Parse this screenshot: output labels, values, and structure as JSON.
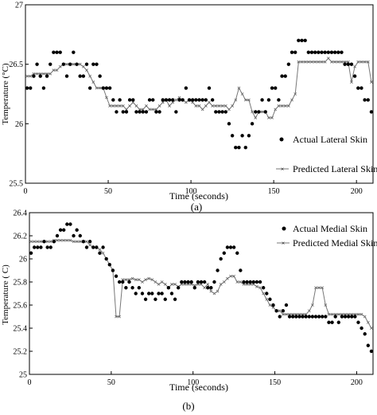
{
  "chart_data": [
    {
      "type": "scatter",
      "panel_label": "(a)",
      "xlabel": "Time (seconds)",
      "ylabel": "Temperature (°C)",
      "xlim": [
        0,
        210
      ],
      "ylim": [
        25.5,
        27
      ],
      "xticks": [
        "0",
        "50",
        "100",
        "150",
        "200"
      ],
      "yticks": [
        "25.5",
        "26",
        "26.5",
        "27"
      ],
      "grid": false,
      "legend_position": "bottom-right",
      "series": [
        {
          "name": "Actual Lateral Skin",
          "style": "dots",
          "x": [
            1,
            3,
            5,
            7,
            9,
            11,
            13,
            15,
            17,
            19,
            21,
            23,
            25,
            27,
            29,
            31,
            33,
            35,
            37,
            39,
            41,
            43,
            45,
            47,
            49,
            51,
            53,
            55,
            57,
            59,
            61,
            63,
            65,
            67,
            69,
            71,
            73,
            75,
            77,
            79,
            81,
            83,
            85,
            87,
            89,
            91,
            93,
            95,
            97,
            99,
            101,
            103,
            105,
            107,
            109,
            111,
            113,
            115,
            117,
            119,
            121,
            123,
            125,
            127,
            129,
            131,
            133,
            135,
            137,
            139,
            141,
            143,
            145,
            147,
            149,
            151,
            153,
            155,
            157,
            159,
            161,
            163,
            165,
            167,
            169,
            171,
            173,
            175,
            177,
            179,
            181,
            183,
            185,
            187,
            189,
            191,
            193,
            195,
            197,
            199,
            201,
            203,
            205,
            207,
            209
          ],
          "y": [
            26.3,
            26.3,
            26.4,
            26.5,
            26.4,
            26.3,
            26.4,
            26.5,
            26.6,
            26.6,
            26.6,
            26.5,
            26.4,
            26.5,
            26.6,
            26.5,
            26.4,
            26.4,
            26.5,
            26.3,
            26.5,
            26.5,
            26.4,
            26.3,
            26.3,
            26.3,
            26.2,
            26.1,
            26.2,
            26.1,
            26.1,
            26.2,
            26.2,
            26.1,
            26.1,
            26.1,
            26.1,
            26.2,
            26.2,
            26.1,
            26.1,
            26.2,
            26.2,
            26.2,
            26.2,
            26.1,
            26.2,
            26.2,
            26.3,
            26.2,
            26.2,
            26.2,
            26.2,
            26.2,
            26.2,
            26.3,
            26.2,
            26.1,
            26.1,
            26.1,
            26.1,
            26.0,
            25.9,
            25.8,
            25.8,
            25.9,
            25.8,
            25.9,
            26.0,
            26.1,
            26.1,
            26.2,
            26.1,
            26.2,
            26.3,
            26.3,
            26.2,
            26.4,
            26.4,
            26.5,
            26.6,
            26.6,
            26.7,
            26.7,
            26.7,
            26.6,
            26.6,
            26.6,
            26.6,
            26.6,
            26.6,
            26.6,
            26.6,
            26.6,
            26.6,
            26.6,
            26.5,
            26.5,
            26.5,
            26.4,
            26.3,
            26.3,
            26.2,
            26.2,
            26.1
          ]
        },
        {
          "name": "Predicted Lateral Skin",
          "style": "line-x",
          "x": [
            1,
            3,
            5,
            7,
            9,
            11,
            13,
            15,
            17,
            19,
            21,
            23,
            25,
            27,
            29,
            31,
            33,
            35,
            37,
            39,
            41,
            43,
            45,
            47,
            49,
            51,
            53,
            55,
            57,
            59,
            61,
            63,
            65,
            67,
            69,
            71,
            73,
            75,
            77,
            79,
            81,
            83,
            85,
            87,
            89,
            91,
            93,
            95,
            97,
            99,
            101,
            103,
            105,
            107,
            109,
            111,
            113,
            115,
            117,
            119,
            121,
            123,
            125,
            127,
            129,
            131,
            133,
            135,
            137,
            139,
            141,
            143,
            145,
            147,
            149,
            151,
            153,
            155,
            157,
            159,
            161,
            163,
            165,
            167,
            169,
            171,
            173,
            175,
            177,
            179,
            181,
            183,
            185,
            187,
            189,
            191,
            193,
            195,
            197,
            199,
            201,
            203,
            205,
            207,
            209
          ],
          "y": [
            26.4,
            26.4,
            26.42,
            26.42,
            26.42,
            26.42,
            26.42,
            26.42,
            26.45,
            26.45,
            26.48,
            26.5,
            26.5,
            26.5,
            26.5,
            26.5,
            26.5,
            26.48,
            26.45,
            26.4,
            26.35,
            26.3,
            26.3,
            26.3,
            26.22,
            26.15,
            26.15,
            26.15,
            26.15,
            26.15,
            26.12,
            26.15,
            26.18,
            26.15,
            26.12,
            26.12,
            26.15,
            26.12,
            26.12,
            26.12,
            26.15,
            26.18,
            26.2,
            26.15,
            26.18,
            26.2,
            26.22,
            26.2,
            26.18,
            26.2,
            26.18,
            26.15,
            26.15,
            26.12,
            26.15,
            26.18,
            26.15,
            26.15,
            26.15,
            26.15,
            26.15,
            26.12,
            26.15,
            26.2,
            26.3,
            26.25,
            26.2,
            26.2,
            26.1,
            26.05,
            26.1,
            26.1,
            26.1,
            26.05,
            26.05,
            26.12,
            26.15,
            26.15,
            26.15,
            26.15,
            26.2,
            26.25,
            26.52,
            26.52,
            26.52,
            26.52,
            26.52,
            26.52,
            26.52,
            26.52,
            26.52,
            26.55,
            26.52,
            26.52,
            26.52,
            26.52,
            26.52,
            26.52,
            26.35,
            26.48,
            26.52,
            26.52,
            26.52,
            26.52,
            26.35
          ]
        }
      ]
    },
    {
      "type": "scatter",
      "panel_label": "(b)",
      "xlabel": "Time (seconds)",
      "ylabel": "Temperature ( C)",
      "xlim": [
        0,
        210
      ],
      "ylim": [
        25,
        26.4
      ],
      "xticks": [
        "0",
        "50",
        "100",
        "150",
        "200"
      ],
      "yticks": [
        "25",
        "25.2",
        "25.4",
        "25.6",
        "25.8",
        "26",
        "26.2",
        "26.4"
      ],
      "grid": false,
      "legend_position": "top-right",
      "series": [
        {
          "name": "Actual Medial Skin",
          "style": "dots",
          "x": [
            1,
            3,
            5,
            7,
            9,
            11,
            13,
            15,
            17,
            19,
            21,
            23,
            25,
            27,
            29,
            31,
            33,
            35,
            37,
            39,
            41,
            43,
            45,
            47,
            49,
            51,
            53,
            55,
            57,
            59,
            61,
            63,
            65,
            67,
            69,
            71,
            73,
            75,
            77,
            79,
            81,
            83,
            85,
            87,
            89,
            91,
            93,
            95,
            97,
            99,
            101,
            103,
            105,
            107,
            109,
            111,
            113,
            115,
            117,
            119,
            121,
            123,
            125,
            127,
            129,
            131,
            133,
            135,
            137,
            139,
            141,
            143,
            145,
            147,
            149,
            151,
            153,
            155,
            157,
            159,
            161,
            163,
            165,
            167,
            169,
            171,
            173,
            175,
            177,
            179,
            181,
            183,
            185,
            187,
            189,
            191,
            193,
            195,
            197,
            199,
            201,
            203,
            205,
            207,
            209
          ],
          "y": [
            26.05,
            26.1,
            26.1,
            26.1,
            26.15,
            26.1,
            26.1,
            26.15,
            26.2,
            26.25,
            26.25,
            26.3,
            26.3,
            26.2,
            26.25,
            26.2,
            26.15,
            26.1,
            26.15,
            26.1,
            26.1,
            26.05,
            26.1,
            26.0,
            25.95,
            25.9,
            25.85,
            25.8,
            25.8,
            25.75,
            25.8,
            25.75,
            25.7,
            25.75,
            25.7,
            25.65,
            25.7,
            25.7,
            25.65,
            25.7,
            25.7,
            25.65,
            25.75,
            25.7,
            25.65,
            25.75,
            25.8,
            25.8,
            25.8,
            25.8,
            25.75,
            25.8,
            25.8,
            25.8,
            25.75,
            25.75,
            25.8,
            25.9,
            26.0,
            26.05,
            26.1,
            26.1,
            26.1,
            26.05,
            25.9,
            25.8,
            25.8,
            25.8,
            25.8,
            25.8,
            25.8,
            25.75,
            25.7,
            25.65,
            25.6,
            25.55,
            25.5,
            25.55,
            25.6,
            25.5,
            25.5,
            25.5,
            25.5,
            25.5,
            25.5,
            25.5,
            25.5,
            25.5,
            25.5,
            25.5,
            25.5,
            25.45,
            25.45,
            25.5,
            25.45,
            25.5,
            25.5,
            25.5,
            25.5,
            25.5,
            25.45,
            25.4,
            25.35,
            25.25,
            25.2
          ]
        },
        {
          "name": "Predicted Medial Skin",
          "style": "line-x",
          "x": [
            1,
            3,
            5,
            7,
            9,
            11,
            13,
            15,
            17,
            19,
            21,
            23,
            25,
            27,
            29,
            31,
            33,
            35,
            37,
            39,
            41,
            43,
            45,
            47,
            49,
            51,
            53,
            55,
            57,
            59,
            61,
            63,
            65,
            67,
            69,
            71,
            73,
            75,
            77,
            79,
            81,
            83,
            85,
            87,
            89,
            91,
            93,
            95,
            97,
            99,
            101,
            103,
            105,
            107,
            109,
            111,
            113,
            115,
            117,
            119,
            121,
            123,
            125,
            127,
            129,
            131,
            133,
            135,
            137,
            139,
            141,
            143,
            145,
            147,
            149,
            151,
            153,
            155,
            157,
            159,
            161,
            163,
            165,
            167,
            169,
            171,
            173,
            175,
            177,
            179,
            181,
            183,
            185,
            187,
            189,
            191,
            193,
            195,
            197,
            199,
            201,
            203,
            205,
            207,
            209
          ],
          "y": [
            26.15,
            26.15,
            26.15,
            26.15,
            26.15,
            26.15,
            26.15,
            26.16,
            26.16,
            26.16,
            26.16,
            26.16,
            26.16,
            26.15,
            26.15,
            26.15,
            26.15,
            26.15,
            26.12,
            26.1,
            26.1,
            26.08,
            26.05,
            26.0,
            25.95,
            25.9,
            25.5,
            25.5,
            25.82,
            25.82,
            25.82,
            25.83,
            25.82,
            25.82,
            25.8,
            25.82,
            25.83,
            25.82,
            25.8,
            25.78,
            25.8,
            25.78,
            25.75,
            25.78,
            25.78,
            25.76,
            25.78,
            25.78,
            25.78,
            25.78,
            25.77,
            25.78,
            25.78,
            25.75,
            25.78,
            25.72,
            25.7,
            25.72,
            25.78,
            25.8,
            25.83,
            25.85,
            25.85,
            25.8,
            25.8,
            25.78,
            25.78,
            25.78,
            25.78,
            25.76,
            25.75,
            25.7,
            25.65,
            25.6,
            25.58,
            25.55,
            25.55,
            25.52,
            25.52,
            25.52,
            25.52,
            25.52,
            25.52,
            25.52,
            25.52,
            25.55,
            25.6,
            25.75,
            25.75,
            25.75,
            25.6,
            25.52,
            25.52,
            25.52,
            25.52,
            25.52,
            25.52,
            25.52,
            25.52,
            25.52,
            25.52,
            25.52,
            25.5,
            25.45,
            25.4
          ]
        }
      ]
    }
  ]
}
